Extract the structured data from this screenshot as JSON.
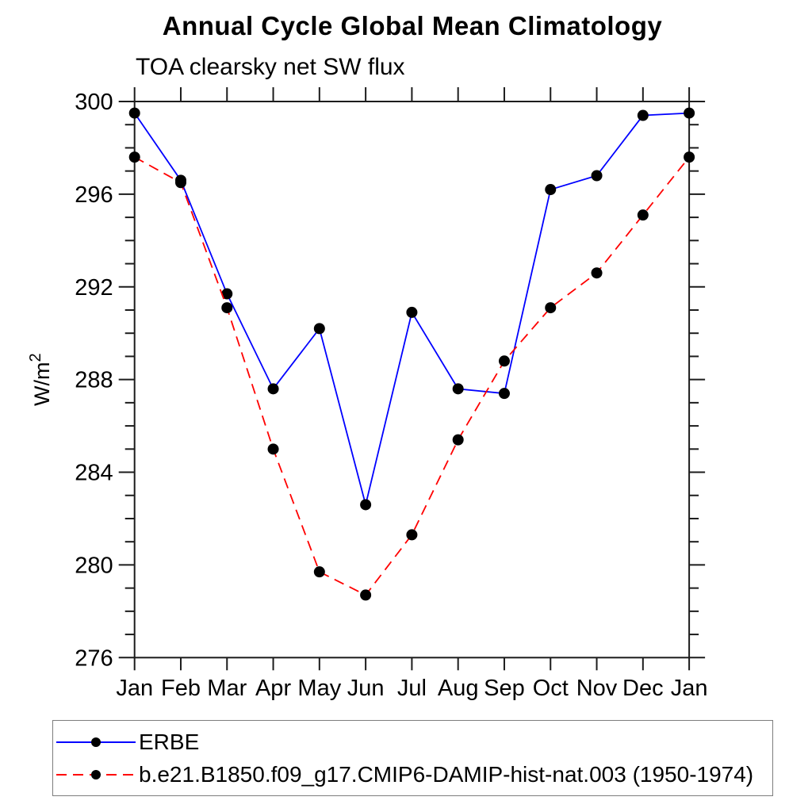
{
  "title": "Annual Cycle Global Mean Climatology",
  "subtitle": "TOA clearsky net SW flux",
  "chart_data": {
    "type": "line",
    "title": "Annual Cycle Global Mean Climatology",
    "subtitle": "TOA clearsky net SW flux",
    "xlabel": "",
    "ylabel_base": "W/m",
    "ylabel_exponent": "2",
    "categories": [
      "Jan",
      "Feb",
      "Mar",
      "Apr",
      "May",
      "Jun",
      "Jul",
      "Aug",
      "Sep",
      "Oct",
      "Nov",
      "Dec",
      "Jan"
    ],
    "ylim": [
      276,
      300
    ],
    "ytick_major_step": 4,
    "ytick_minor_step": 1,
    "ytick_labels": [
      "276",
      "280",
      "284",
      "288",
      "292",
      "296",
      "300"
    ],
    "grid": false,
    "legend_position": "bottom",
    "series": [
      {
        "name": "ERBE",
        "color": "#0000ff",
        "line_style": "solid",
        "marker": "filled-circle",
        "marker_color": "#000000",
        "values": [
          299.5,
          296.6,
          291.7,
          287.6,
          290.2,
          282.6,
          290.9,
          287.6,
          287.4,
          296.2,
          296.8,
          299.4,
          299.5
        ]
      },
      {
        "name": "b.e21.B1850.f09_g17.CMIP6-DAMIP-hist-nat.003 (1950-1974)",
        "color": "#ff0000",
        "line_style": "dashed",
        "marker": "filled-circle",
        "marker_color": "#000000",
        "values": [
          297.6,
          296.5,
          291.1,
          285.0,
          279.7,
          278.7,
          281.3,
          285.4,
          288.8,
          291.1,
          292.6,
          295.1,
          297.6
        ]
      }
    ]
  }
}
